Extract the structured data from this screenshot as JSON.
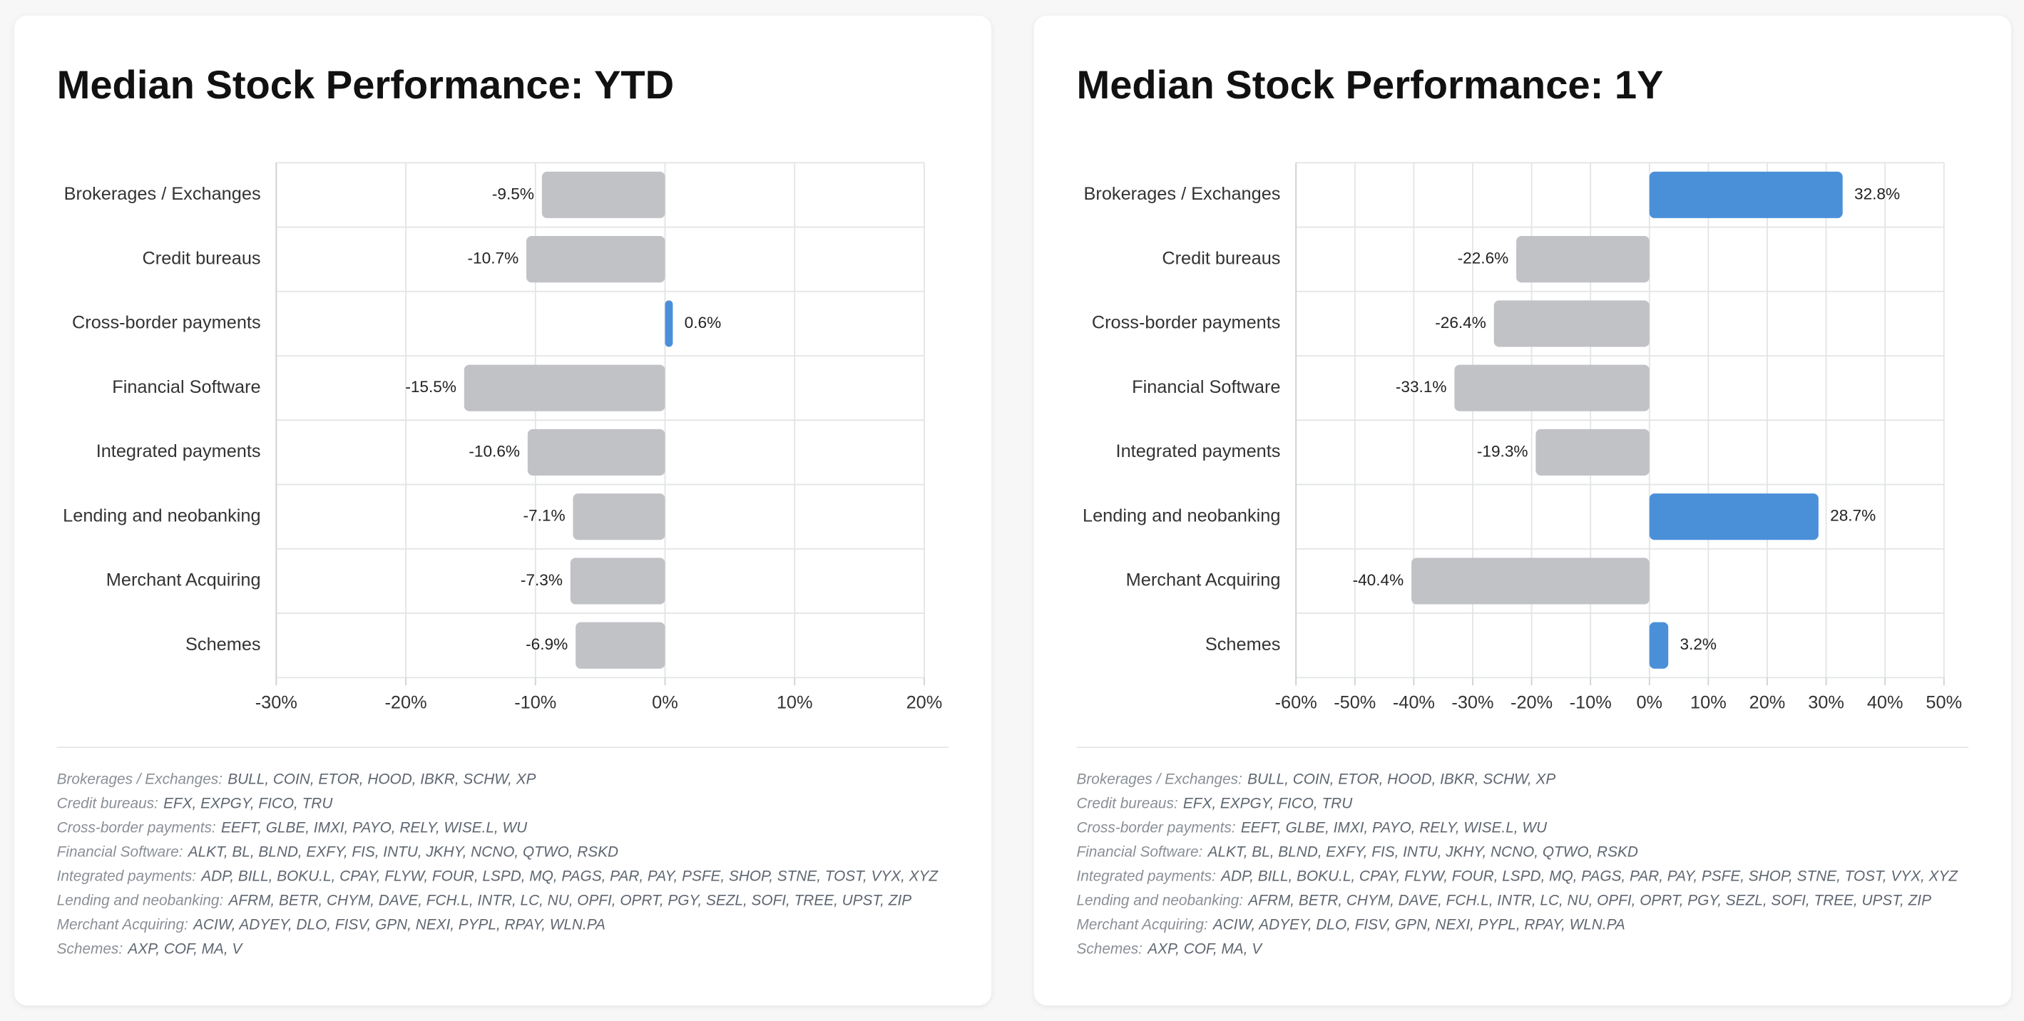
{
  "chart_data": [
    {
      "type": "bar",
      "orientation": "horizontal",
      "title": "Median Stock Performance: YTD",
      "categories": [
        "Brokerages / Exchanges",
        "Credit bureaus",
        "Cross-border payments",
        "Financial Software",
        "Integrated payments",
        "Lending and neobanking",
        "Merchant Acquiring",
        "Schemes"
      ],
      "values": [
        -9.5,
        -10.7,
        0.6,
        -15.5,
        -10.6,
        -7.1,
        -7.3,
        -6.9
      ],
      "value_labels": [
        "-9.5%",
        "-10.7%",
        "0.6%",
        "-15.5%",
        "-10.6%",
        "-7.1%",
        "-7.3%",
        "-6.9%"
      ],
      "colors": {
        "positive": "#4a90d9",
        "negative": "#c0c2c6"
      },
      "xlim": [
        -30,
        20
      ],
      "xticks": [
        {
          "value": -30,
          "label": "-30%"
        },
        {
          "value": -20,
          "label": "-20%"
        },
        {
          "value": -10,
          "label": "-10%"
        },
        {
          "value": 0,
          "label": "0%"
        },
        {
          "value": 10,
          "label": "10%"
        },
        {
          "value": 20,
          "label": "20%"
        }
      ],
      "grid": true,
      "notes": [
        {
          "label": "Brokerages / Exchanges:",
          "tickers": "BULL, COIN, ETOR, HOOD, IBKR, SCHW, XP"
        },
        {
          "label": "Credit bureaus:",
          "tickers": "EFX, EXPGY, FICO, TRU"
        },
        {
          "label": "Cross-border payments:",
          "tickers": "EEFT, GLBE, IMXI, PAYO, RELY, WISE.L, WU"
        },
        {
          "label": "Financial Software:",
          "tickers": "ALKT, BL, BLND, EXFY, FIS, INTU, JKHY, NCNO, QTWO, RSKD"
        },
        {
          "label": "Integrated payments:",
          "tickers": "ADP, BILL, BOKU.L, CPAY, FLYW, FOUR, LSPD, MQ, PAGS, PAR, PAY, PSFE, SHOP, STNE, TOST, VYX, XYZ"
        },
        {
          "label": "Lending and neobanking:",
          "tickers": "AFRM, BETR, CHYM, DAVE, FCH.L, INTR, LC, NU, OPFI, OPRT, PGY, SEZL, SOFI, TREE, UPST, ZIP"
        },
        {
          "label": "Merchant Acquiring:",
          "tickers": "ACIW, ADYEY, DLO, FISV, GPN, NEXI, PYPL, RPAY, WLN.PA"
        },
        {
          "label": "Schemes:",
          "tickers": "AXP, COF, MA, V"
        }
      ]
    },
    {
      "type": "bar",
      "orientation": "horizontal",
      "title": "Median Stock Performance: 1Y",
      "categories": [
        "Brokerages / Exchanges",
        "Credit bureaus",
        "Cross-border payments",
        "Financial Software",
        "Integrated payments",
        "Lending and neobanking",
        "Merchant Acquiring",
        "Schemes"
      ],
      "values": [
        32.8,
        -22.6,
        -26.4,
        -33.1,
        -19.3,
        28.7,
        -40.4,
        3.2
      ],
      "value_labels": [
        "32.8%",
        "-22.6%",
        "-26.4%",
        "-33.1%",
        "-19.3%",
        "28.7%",
        "-40.4%",
        "3.2%"
      ],
      "colors": {
        "positive": "#4a90d9",
        "negative": "#c0c2c6"
      },
      "xlim": [
        -60,
        50
      ],
      "xticks": [
        {
          "value": -60,
          "label": "-60%"
        },
        {
          "value": -50,
          "label": "-50%"
        },
        {
          "value": -40,
          "label": "-40%"
        },
        {
          "value": -30,
          "label": "-30%"
        },
        {
          "value": -20,
          "label": "-20%"
        },
        {
          "value": -10,
          "label": "-10%"
        },
        {
          "value": 0,
          "label": "0%"
        },
        {
          "value": 10,
          "label": "10%"
        },
        {
          "value": 20,
          "label": "20%"
        },
        {
          "value": 30,
          "label": "30%"
        },
        {
          "value": 40,
          "label": "40%"
        },
        {
          "value": 50,
          "label": "50%"
        }
      ],
      "grid": true,
      "notes": [
        {
          "label": "Brokerages / Exchanges:",
          "tickers": "BULL, COIN, ETOR, HOOD, IBKR, SCHW, XP"
        },
        {
          "label": "Credit bureaus:",
          "tickers": "EFX, EXPGY, FICO, TRU"
        },
        {
          "label": "Cross-border payments:",
          "tickers": "EEFT, GLBE, IMXI, PAYO, RELY, WISE.L, WU"
        },
        {
          "label": "Financial Software:",
          "tickers": "ALKT, BL, BLND, EXFY, FIS, INTU, JKHY, NCNO, QTWO, RSKD"
        },
        {
          "label": "Integrated payments:",
          "tickers": "ADP, BILL, BOKU.L, CPAY, FLYW, FOUR, LSPD, MQ, PAGS, PAR, PAY, PSFE, SHOP, STNE, TOST, VYX, XYZ"
        },
        {
          "label": "Lending and neobanking:",
          "tickers": "AFRM, BETR, CHYM, DAVE, FCH.L, INTR, LC, NU, OPFI, OPRT, PGY, SEZL, SOFI, TREE, UPST, ZIP"
        },
        {
          "label": "Merchant Acquiring:",
          "tickers": "ACIW, ADYEY, DLO, FISV, GPN, NEXI, PYPL, RPAY, WLN.PA"
        },
        {
          "label": "Schemes:",
          "tickers": "AXP, COF, MA, V"
        }
      ]
    }
  ]
}
